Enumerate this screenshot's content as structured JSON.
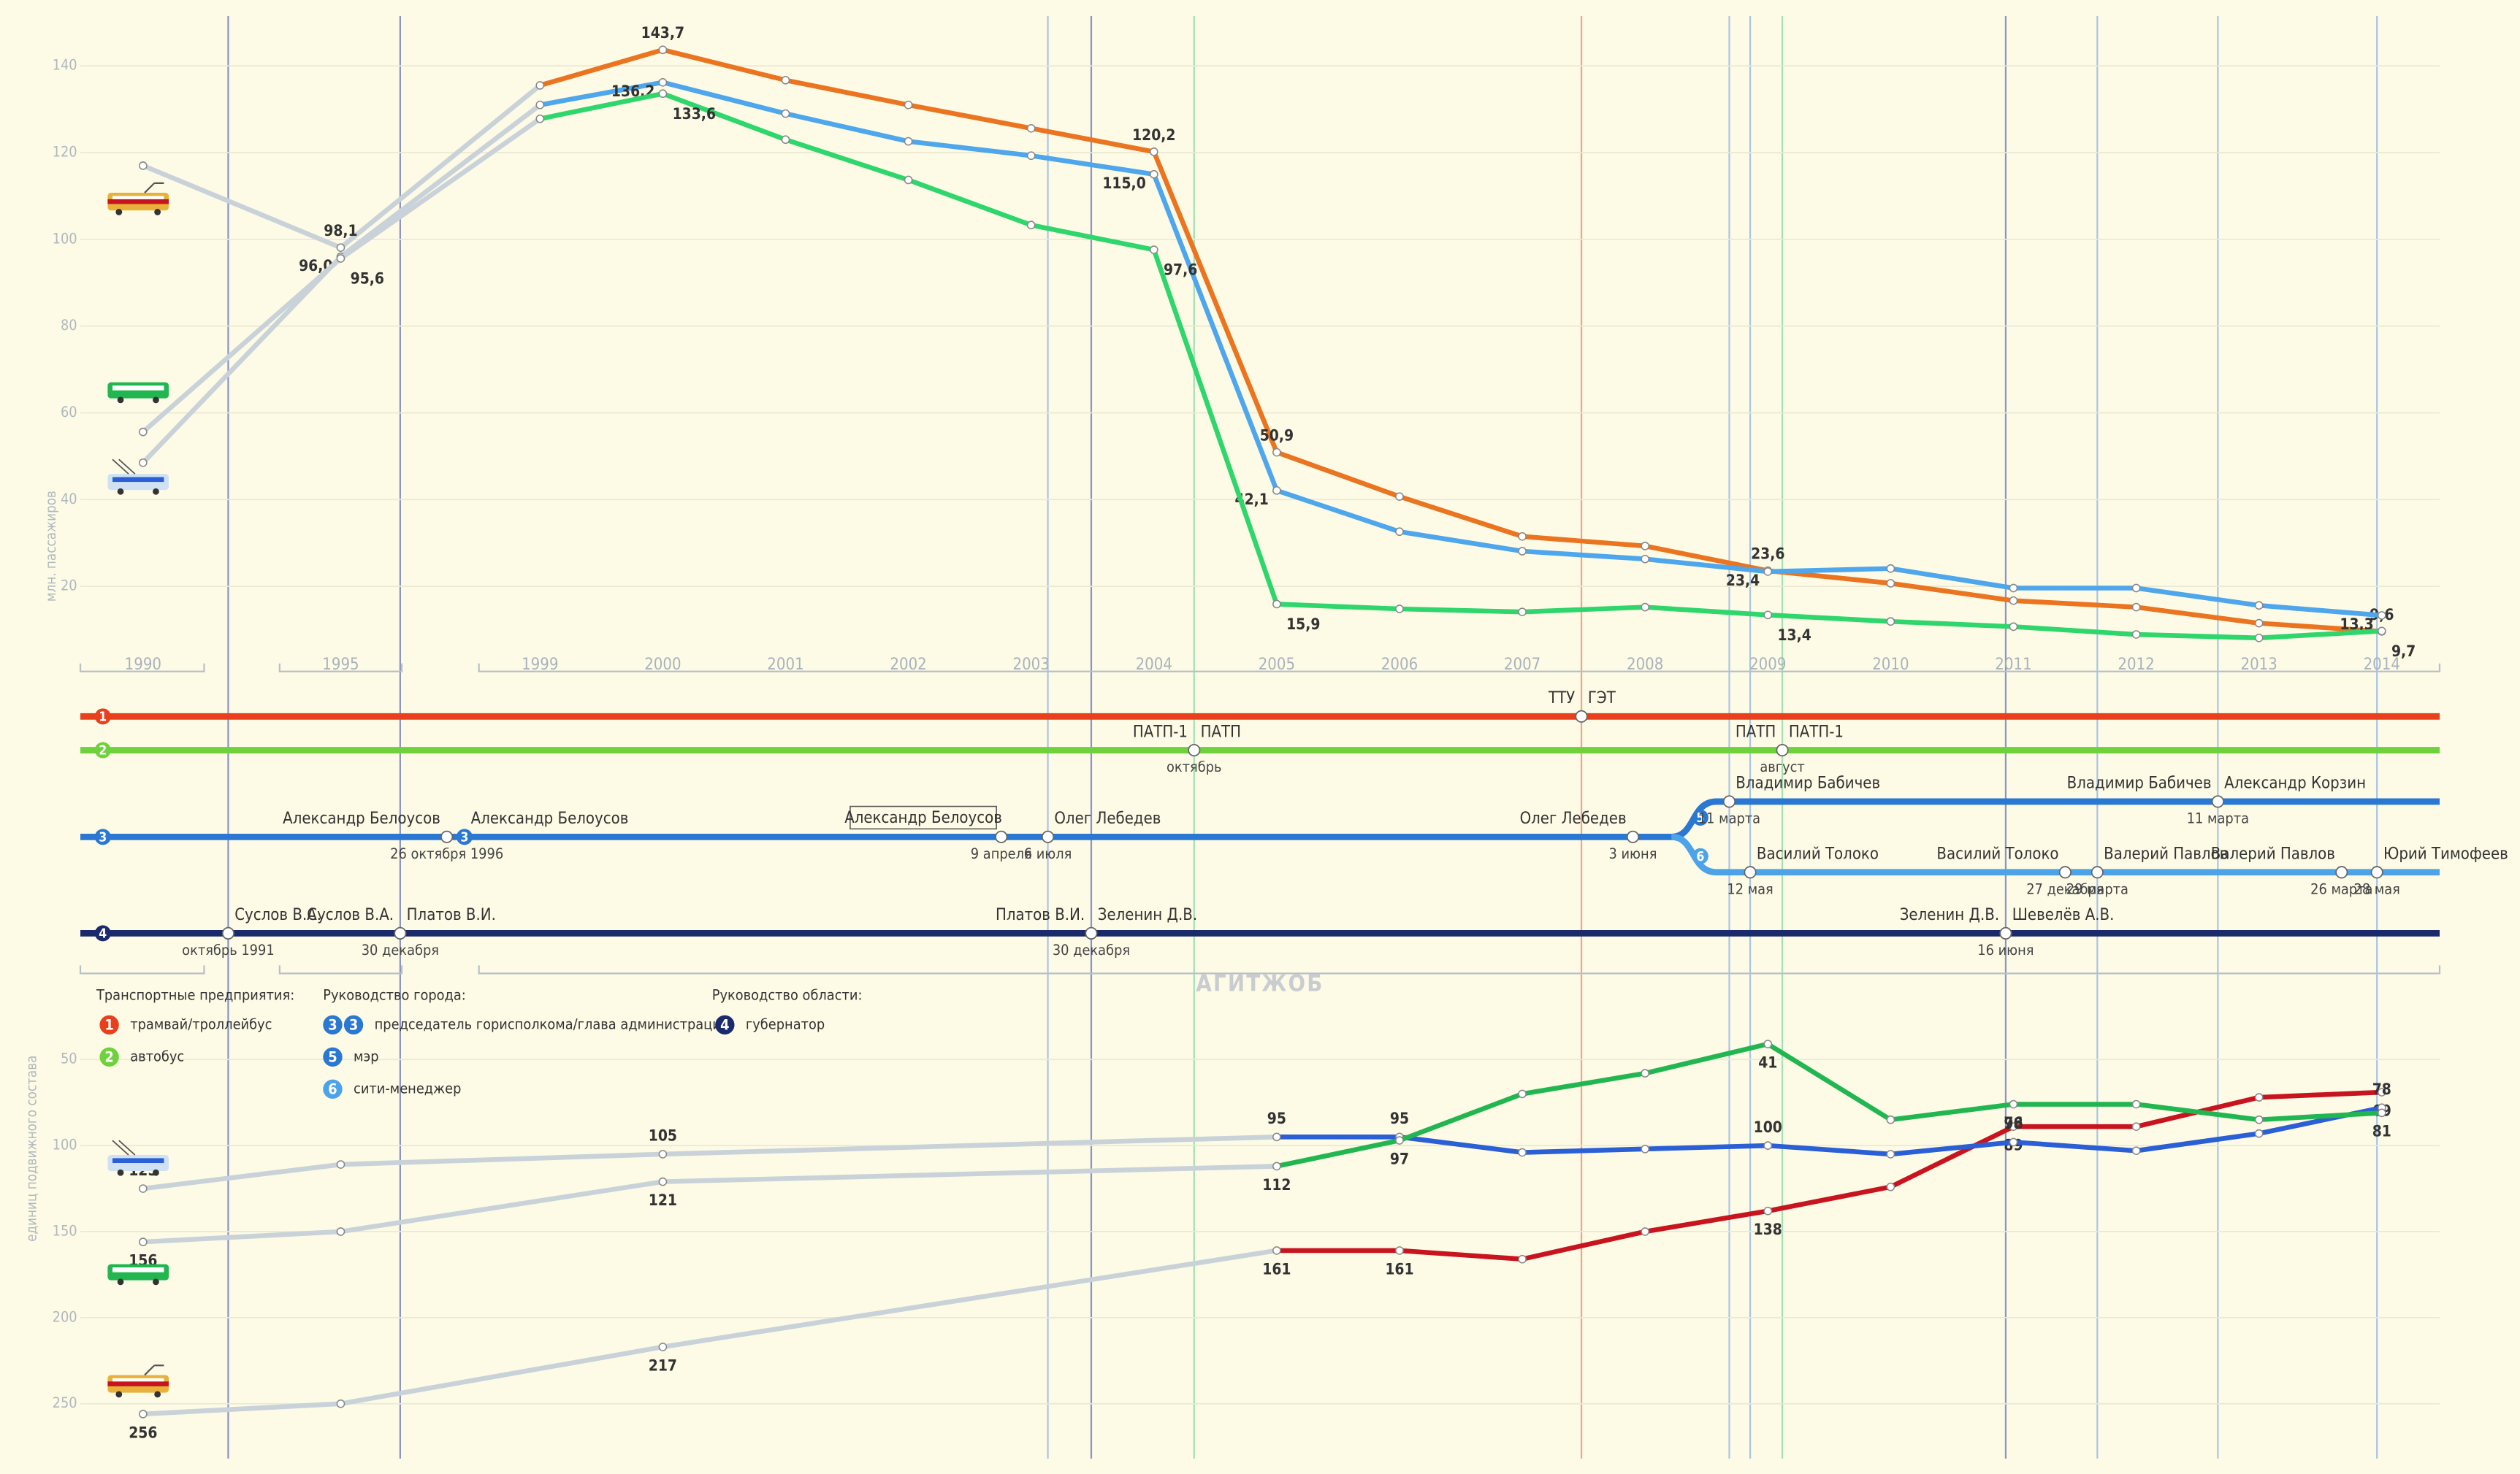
{
  "chart_data": [
    {
      "type": "line",
      "y_label": "млн. пассажиров",
      "categories": [
        "1990",
        "1995",
        "1999",
        "2000",
        "2001",
        "2002",
        "2003",
        "2004",
        "2005",
        "2006",
        "2007",
        "2008",
        "2009",
        "2010",
        "2011",
        "2012",
        "2013",
        "2014"
      ],
      "ylim": [
        0,
        150
      ],
      "yticks": [
        20,
        40,
        60,
        80,
        100,
        120,
        140
      ],
      "grid": true,
      "series": [
        {
          "name": "трамвай",
          "color": "#ea7420",
          "label_color": "#c0281e",
          "values": [
            117,
            98.1,
            135.5,
            143.7,
            136.7,
            131,
            125.6,
            120.2,
            50.9,
            40.7,
            31.5,
            29.3,
            23.6,
            20.7,
            16.7,
            15.2,
            11.5,
            9.6
          ],
          "value_labels": [
            null,
            "98,1",
            null,
            "143,7",
            null,
            null,
            null,
            "120,2",
            "50,9",
            null,
            null,
            null,
            "23,6",
            null,
            null,
            null,
            null,
            "9,6"
          ]
        },
        {
          "name": "троллейбус",
          "color": "#4ea6ec",
          "label_color": "#2a5fd6",
          "values": [
            48.5,
            96.0,
            131,
            136.2,
            129,
            122.6,
            119.3,
            115.0,
            42.1,
            32.6,
            28.1,
            26.3,
            23.4,
            24.1,
            19.6,
            19.6,
            15.6,
            13.3
          ],
          "value_labels": [
            null,
            "96,0",
            null,
            "136,2",
            null,
            null,
            null,
            "115,0",
            "42,1",
            null,
            null,
            null,
            "23,4",
            null,
            null,
            null,
            null,
            "13,3"
          ]
        },
        {
          "name": "автобус",
          "color": "#2fd66c",
          "label_color": "#1b6a3a",
          "values": [
            55.6,
            95.6,
            127.8,
            133.6,
            123,
            113.7,
            103.3,
            97.6,
            15.9,
            14.8,
            14.1,
            15.2,
            13.4,
            11.9,
            10.7,
            8.9,
            8.1,
            9.7
          ],
          "value_labels": [
            null,
            "95,6",
            null,
            "133,6",
            null,
            null,
            null,
            "97,6",
            "15,9",
            null,
            null,
            null,
            "13,4",
            null,
            null,
            null,
            null,
            "9,7"
          ]
        }
      ]
    },
    {
      "type": "line",
      "y_label": "единиц подвижного состава",
      "ylim": [
        0,
        280
      ],
      "y_inverted": true,
      "yticks": [
        50,
        100,
        150,
        200,
        250
      ],
      "grid": true,
      "series": [
        {
          "name": "трамвай",
          "color": "#c8141e",
          "label_color": "#b01018",
          "values": [
            256,
            250,
            null,
            217,
            null,
            null,
            null,
            null,
            161,
            161,
            166,
            150,
            138,
            124,
            89,
            89,
            72,
            69
          ],
          "show_labels": [
            true,
            false,
            false,
            true,
            false,
            false,
            false,
            false,
            true,
            true,
            false,
            false,
            true,
            false,
            true,
            false,
            false,
            true
          ]
        },
        {
          "name": "троллейбус",
          "color": "#2a5fd6",
          "label_color": "#2a5fd6",
          "values": [
            125,
            111,
            null,
            105,
            null,
            null,
            null,
            null,
            95,
            95,
            104,
            102,
            100,
            105,
            98,
            103,
            93,
            78
          ],
          "show_labels": [
            true,
            false,
            false,
            true,
            false,
            false,
            false,
            false,
            true,
            true,
            false,
            false,
            true,
            false,
            true,
            false,
            false,
            true
          ]
        },
        {
          "name": "автобус",
          "color": "#22b651",
          "label_color": "#1b6a3a",
          "values": [
            156,
            150,
            null,
            121,
            null,
            null,
            null,
            null,
            112,
            97,
            70,
            58,
            41,
            85,
            76,
            76,
            85,
            81
          ],
          "show_labels": [
            true,
            false,
            false,
            true,
            false,
            false,
            false,
            false,
            true,
            true,
            false,
            false,
            true,
            false,
            true,
            false,
            false,
            true
          ]
        }
      ]
    }
  ],
  "timeline": {
    "box": "Александр Белоусов",
    "rows": [
      {
        "num": "1",
        "color": "#e8401c",
        "events": [
          {
            "left": "ТТУ",
            "right": "ГЭТ"
          }
        ]
      },
      {
        "num": "2",
        "color": "#6fd13c",
        "events": [
          {
            "left": "ПАТП-1",
            "right": "ПАТП",
            "date": "октябрь"
          },
          {
            "left": "ПАТП",
            "right": "ПАТП-1",
            "date": "август"
          }
        ]
      },
      {
        "num": "3",
        "color": "#2a78d2",
        "events": [
          {
            "left": "Александр Белоусов",
            "date": "26 октября 1996"
          },
          {
            "num": "3",
            "right": "Александр Белоусов"
          },
          {
            "date": "9 апреля"
          },
          {
            "right": "Олег Лебедев",
            "date": "6 июля"
          },
          {
            "left": "Олег Лебедев",
            "date": "3 июня"
          }
        ]
      },
      {
        "num": "5",
        "color": "#2a78d2",
        "events": [
          {
            "right": "Владимир Бабичев",
            "date": "11 марта"
          },
          {
            "left": "Владимир Бабичев",
            "right": "Александр Корзин",
            "date": "11 марта"
          }
        ]
      },
      {
        "num": "6",
        "color": "#4ca3ea",
        "events": [
          {
            "right": "Василий Толоко",
            "date": "12 мая"
          },
          {
            "left": "Василий Толоко",
            "date": "27 декабря"
          },
          {
            "right": "Валерий Павлов",
            "date": "29 марта"
          },
          {
            "left": "Валерий Павлов",
            "date": "26 марта"
          },
          {
            "right": "Юрий Тимофеев",
            "date": "28 мая"
          }
        ]
      },
      {
        "num": "4",
        "color": "#1b2a6b",
        "events": [
          {
            "right": "Суслов В.А.",
            "date": "октябрь 1991"
          },
          {
            "left": "Суслов В.А.",
            "right": "Платов В.И.",
            "date": "30 декабря"
          },
          {
            "left": "Платов В.И.",
            "right": "Зеленин Д.В.",
            "date": "30 декабря"
          },
          {
            "left": "Зеленин Д.В.",
            "right": "Шевелёв А.В.",
            "date": "16 июня"
          }
        ]
      }
    ]
  },
  "legend": {
    "groups": [
      {
        "title": "Транспортные предприятия:",
        "items": [
          {
            "nums": [
              "1"
            ],
            "colors": [
              "#e8401c"
            ],
            "label": "трамвай/троллейбус"
          },
          {
            "nums": [
              "2"
            ],
            "colors": [
              "#6fd13c"
            ],
            "label": "автобус"
          }
        ]
      },
      {
        "title": "Руководство города:",
        "items": [
          {
            "nums": [
              "3",
              "3"
            ],
            "colors": [
              "#2a78d2",
              "#2a78d2"
            ],
            "label": "председатель горисполкома/глава администрации"
          },
          {
            "nums": [
              "5"
            ],
            "colors": [
              "#2a78d2"
            ],
            "label": "мэр"
          },
          {
            "nums": [
              "6"
            ],
            "colors": [
              "#4ca3ea"
            ],
            "label": "сити-менеджер"
          }
        ]
      },
      {
        "title": "Руководство области:",
        "items": [
          {
            "nums": [
              "4"
            ],
            "colors": [
              "#1b2a6b"
            ],
            "label": "губернатор"
          }
        ]
      }
    ]
  },
  "watermark": "АГИТЖОБ"
}
